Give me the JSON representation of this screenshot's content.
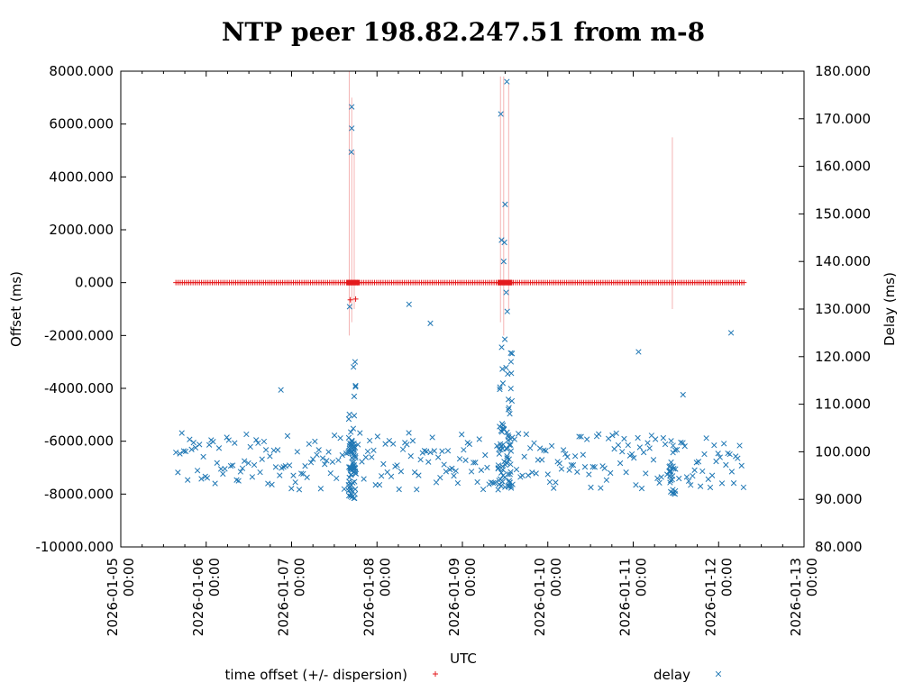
{
  "chart_data": {
    "type": "scatter",
    "title": "NTP peer 198.82.247.51 from m-8",
    "xlabel": "UTC",
    "ylabel": "Offset (ms)",
    "y2label": "Delay (ms)",
    "xlim_hours": [
      0,
      192
    ],
    "ylim": [
      -10000,
      8000
    ],
    "y2lim": [
      80,
      180
    ],
    "y_ticks": [
      "8000.000",
      "6000.000",
      "4000.000",
      "2000.000",
      "0.000",
      "-2000.000",
      "-4000.000",
      "-6000.000",
      "-8000.000",
      "-10000.000"
    ],
    "y2_ticks": [
      "180.000",
      "170.000",
      "160.000",
      "150.000",
      "140.000",
      "130.000",
      "120.000",
      "110.000",
      "100.000",
      "90.000",
      "80.000"
    ],
    "x_ticks": [
      {
        "date": "2026-01-05",
        "time": "00:00"
      },
      {
        "date": "2026-01-06",
        "time": "00:00"
      },
      {
        "date": "2026-01-07",
        "time": "00:00"
      },
      {
        "date": "2026-01-08",
        "time": "00:00"
      },
      {
        "date": "2026-01-09",
        "time": "00:00"
      },
      {
        "date": "2026-01-10",
        "time": "00:00"
      },
      {
        "date": "2026-01-11",
        "time": "00:00"
      },
      {
        "date": "2026-01-12",
        "time": "00:00"
      },
      {
        "date": "2026-01-13",
        "time": "00:00"
      }
    ],
    "legend_placement": "bottom",
    "series": [
      {
        "name": "time offset (+/- dispersion)",
        "marker": "+",
        "color": "#e41a1c",
        "x_range_hours": [
          15.5,
          175.5
        ],
        "typical_value": 0,
        "outliers": [
          {
            "x": 64.5,
            "y": -650
          },
          {
            "x": 66.0,
            "y": -620
          }
        ]
      },
      {
        "name": "delay",
        "marker": "x",
        "color": "#1f77b4",
        "x_range_hours": [
          15.5,
          175.5
        ],
        "typical_range": [
          92,
          104
        ],
        "highlights": [
          {
            "x": 64.9,
            "y": 172.5
          },
          {
            "x": 64.9,
            "y": 168.0
          },
          {
            "x": 64.8,
            "y": 163.0
          },
          {
            "x": 108.5,
            "y": 177.8
          },
          {
            "x": 106.8,
            "y": 171.0
          },
          {
            "x": 108.0,
            "y": 152.0
          },
          {
            "x": 107.0,
            "y": 144.5
          },
          {
            "x": 107.8,
            "y": 144.0
          },
          {
            "x": 107.6,
            "y": 140.0
          },
          {
            "x": 108.3,
            "y": 133.5
          },
          {
            "x": 108.6,
            "y": 129.5
          },
          {
            "x": 81.0,
            "y": 131.0
          },
          {
            "x": 87.0,
            "y": 127.0
          },
          {
            "x": 145.5,
            "y": 121.0
          },
          {
            "x": 171.5,
            "y": 125.0
          },
          {
            "x": 64.3,
            "y": 130.5
          },
          {
            "x": 45.0,
            "y": 113.0
          },
          {
            "x": 158.0,
            "y": 112.0
          }
        ]
      }
    ]
  },
  "colors": {
    "offset": "#e41a1c",
    "delay": "#1f77b4",
    "dispersion": "#f4b3b3"
  }
}
